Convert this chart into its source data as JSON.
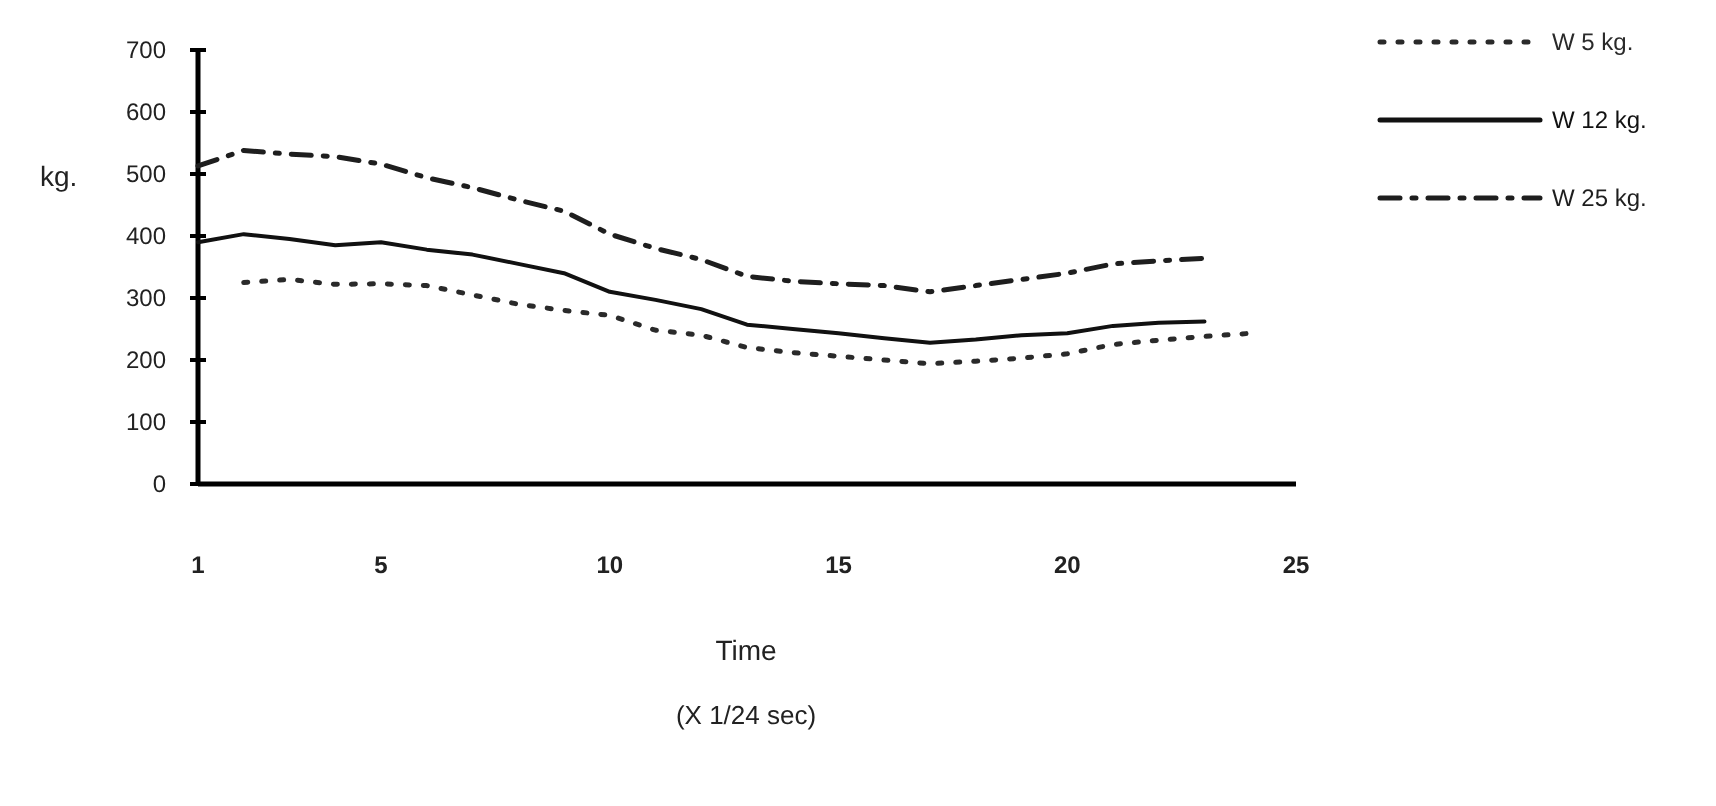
{
  "chart_data": {
    "type": "line",
    "xlabel": "Time",
    "ylabel": "kg.",
    "annotations": [
      "(X 1/24 sec)"
    ],
    "x": [
      1,
      2,
      3,
      4,
      5,
      6,
      7,
      8,
      9,
      10,
      11,
      12,
      13,
      14,
      15,
      16,
      17,
      18,
      19,
      20,
      21,
      22,
      23,
      24
    ],
    "xlim": [
      1,
      25
    ],
    "xticks": [
      1,
      5,
      10,
      15,
      20,
      25
    ],
    "ylim": [
      0,
      700
    ],
    "yticks": [
      0,
      100,
      200,
      300,
      400,
      500,
      600,
      700
    ],
    "grid": false,
    "legend": "top right",
    "marker": "none",
    "series": [
      {
        "name": "W 5 kg.",
        "color": "#2a2a2a",
        "line_style": "dotted",
        "values": [
          null,
          325,
          330,
          322,
          323,
          320,
          305,
          290,
          280,
          272,
          248,
          240,
          220,
          212,
          206,
          200,
          194,
          198,
          203,
          210,
          225,
          232,
          238,
          243
        ]
      },
      {
        "name": "W 12 kg.",
        "color": "#111111",
        "line_style": "solid",
        "values": [
          390,
          403,
          395,
          385,
          390,
          378,
          370,
          355,
          340,
          310,
          297,
          282,
          257,
          250,
          243,
          235,
          228,
          233,
          240,
          243,
          255,
          260,
          262,
          null
        ]
      },
      {
        "name": "W 25 kg.",
        "color": "#1e1e1e",
        "line_style": "dashdot",
        "values": [
          513,
          538,
          532,
          528,
          516,
          494,
          478,
          458,
          440,
          403,
          380,
          362,
          335,
          327,
          323,
          320,
          310,
          320,
          330,
          340,
          355,
          360,
          364,
          null
        ]
      }
    ]
  }
}
